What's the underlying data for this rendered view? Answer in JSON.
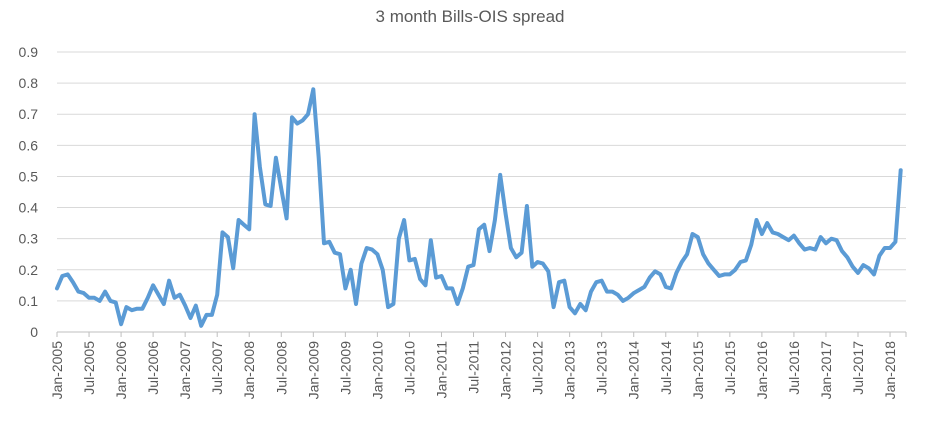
{
  "chart_data": {
    "type": "line",
    "title": "3 month Bills-OIS spread",
    "xlabel": "",
    "ylabel": "",
    "ylim": [
      0,
      0.9
    ],
    "yticks": [
      "0",
      "0.1",
      "0.2",
      "0.3",
      "0.4",
      "0.5",
      "0.6",
      "0.7",
      "0.8",
      "0.9"
    ],
    "xtick_labels": [
      "Jan-2005",
      "Jul-2005",
      "Jan-2006",
      "Jul-2006",
      "Jan-2007",
      "Jul-2007",
      "Jan-2008",
      "Jul-2008",
      "Jan-2009",
      "Jul-2009",
      "Jan-2010",
      "Jul-2010",
      "Jan-2011",
      "Jul-2011",
      "Jan-2012",
      "Jul-2012",
      "Jan-2013",
      "Jul-2013",
      "Jan-2014",
      "Jul-2014",
      "Jan-2015",
      "Jul-2015",
      "Jan-2016",
      "Jul-2016",
      "Jan-2017",
      "Jul-2017",
      "Jan-2018"
    ],
    "x_start": "Jan-2005",
    "x_frequency": "monthly",
    "grid": true,
    "legend": "none",
    "series": [
      {
        "name": "3 month Bills-OIS spread",
        "color": "#5b9bd5",
        "values": [
          0.14,
          0.18,
          0.185,
          0.16,
          0.13,
          0.125,
          0.11,
          0.11,
          0.1,
          0.13,
          0.1,
          0.095,
          0.025,
          0.08,
          0.07,
          0.075,
          0.075,
          0.11,
          0.15,
          0.12,
          0.09,
          0.165,
          0.11,
          0.12,
          0.085,
          0.045,
          0.085,
          0.02,
          0.055,
          0.055,
          0.12,
          0.32,
          0.305,
          0.205,
          0.36,
          0.345,
          0.33,
          0.7,
          0.53,
          0.41,
          0.405,
          0.56,
          0.46,
          0.365,
          0.69,
          0.67,
          0.68,
          0.7,
          0.78,
          0.56,
          0.285,
          0.29,
          0.255,
          0.25,
          0.14,
          0.2,
          0.09,
          0.22,
          0.27,
          0.265,
          0.25,
          0.2,
          0.08,
          0.09,
          0.3,
          0.36,
          0.23,
          0.235,
          0.17,
          0.15,
          0.295,
          0.175,
          0.18,
          0.14,
          0.14,
          0.09,
          0.14,
          0.21,
          0.215,
          0.33,
          0.345,
          0.26,
          0.36,
          0.505,
          0.38,
          0.27,
          0.24,
          0.255,
          0.405,
          0.21,
          0.225,
          0.22,
          0.195,
          0.08,
          0.16,
          0.165,
          0.08,
          0.06,
          0.09,
          0.07,
          0.13,
          0.16,
          0.165,
          0.13,
          0.13,
          0.12,
          0.1,
          0.11,
          0.125,
          0.135,
          0.145,
          0.175,
          0.195,
          0.185,
          0.145,
          0.14,
          0.19,
          0.225,
          0.25,
          0.315,
          0.305,
          0.25,
          0.22,
          0.2,
          0.18,
          0.185,
          0.185,
          0.2,
          0.225,
          0.23,
          0.28,
          0.36,
          0.315,
          0.35,
          0.32,
          0.315,
          0.305,
          0.295,
          0.31,
          0.285,
          0.265,
          0.27,
          0.265,
          0.305,
          0.285,
          0.3,
          0.295,
          0.26,
          0.24,
          0.21,
          0.19,
          0.215,
          0.205,
          0.185,
          0.245,
          0.27,
          0.27,
          0.29,
          0.52
        ]
      }
    ]
  }
}
